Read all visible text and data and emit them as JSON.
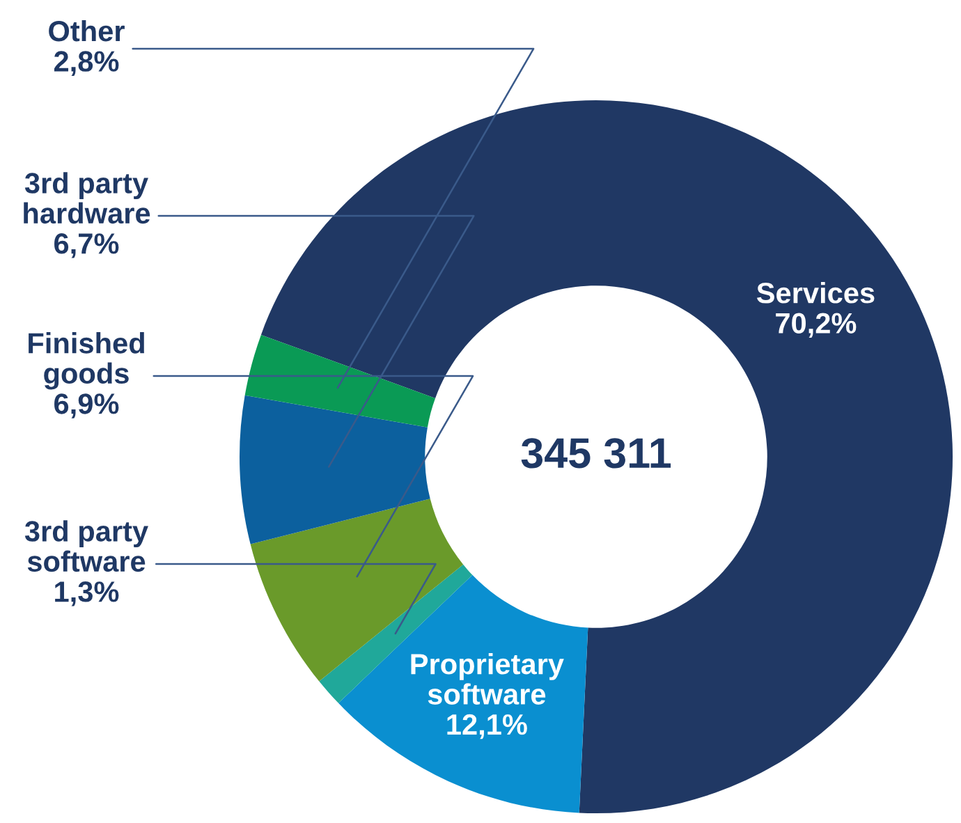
{
  "chart_data": {
    "type": "donut",
    "categories": [
      "Services",
      "Proprietary\nsoftware",
      "3rd party\nsoftware",
      "Finished\ngoods",
      "3rd party\nhardware",
      "Other"
    ],
    "values": [
      70.2,
      12.1,
      1.3,
      6.9,
      6.7,
      2.8
    ],
    "value_labels": [
      "70,2%",
      "12,1%",
      "1,3%",
      "6,9%",
      "6,7%",
      "2,8%"
    ],
    "colors": [
      "#203864",
      "#0a8fd0",
      "#20a89a",
      "#6a9a2a",
      "#0c609e",
      "#0a9a55"
    ],
    "annotations": [
      "345 311"
    ],
    "legend": false
  }
}
